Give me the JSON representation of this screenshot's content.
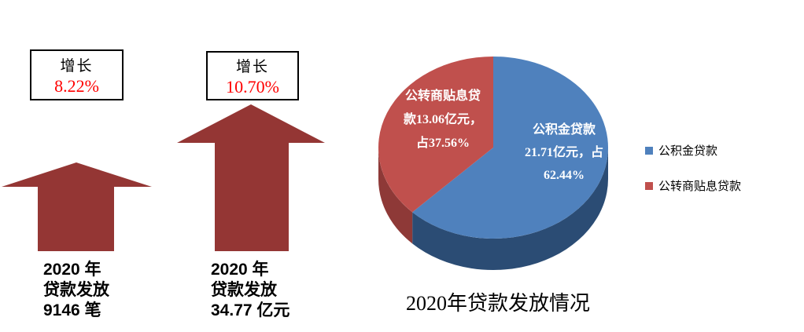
{
  "left_panel": {
    "arrow_color": "#943634",
    "arrows": [
      {
        "growth_label": "增长",
        "growth_value": "8.22%",
        "caption_lines": [
          "2020 年",
          "贷款发放",
          "9146 笔"
        ]
      },
      {
        "growth_label": "增长",
        "growth_value": "10.70%",
        "caption_lines": [
          "2020 年",
          "贷款发放",
          "34.77 亿元"
        ]
      }
    ]
  },
  "pie": {
    "title": "2020年贷款发放情况",
    "slices": [
      {
        "name": "公积金贷款",
        "percent": 62.44,
        "color": "#4F81BD",
        "side_color": "#2B4C74",
        "label_lines": [
          "公积金贷款",
          "21.71亿元，占",
          "62.44%"
        ]
      },
      {
        "name": "公转商贴息贷款",
        "percent": 37.56,
        "color": "#C0504D",
        "side_color": "#8E3937",
        "label_lines": [
          "公转商贴息贷",
          "款13.06亿元，",
          "占37.56%"
        ]
      }
    ],
    "legend": [
      {
        "label": "公积金贷款",
        "color": "#4F81BD"
      },
      {
        "label": "公转商贴息贷款",
        "color": "#C0504D"
      }
    ]
  },
  "chart_data": [
    {
      "type": "pie",
      "title": "2020年贷款发放情况",
      "labels": [
        "公积金贷款",
        "公转商贴息贷款"
      ],
      "values": [
        21.71,
        13.06
      ],
      "unit": "亿元",
      "percents": [
        62.44,
        37.56
      ],
      "colors": [
        "#4F81BD",
        "#C0504D"
      ],
      "legend_position": "right",
      "style": "3d-pie, starts at 12 o'clock, blue clockwise"
    },
    {
      "type": "bar",
      "style": "upward-arrow-pictograph",
      "categories": [
        "2020 年贷款发放 9146 笔",
        "2020 年贷款发放 34.77 亿元"
      ],
      "growth_values": [
        "8.22%",
        "10.70%"
      ],
      "arrow_color": "#943634"
    }
  ]
}
